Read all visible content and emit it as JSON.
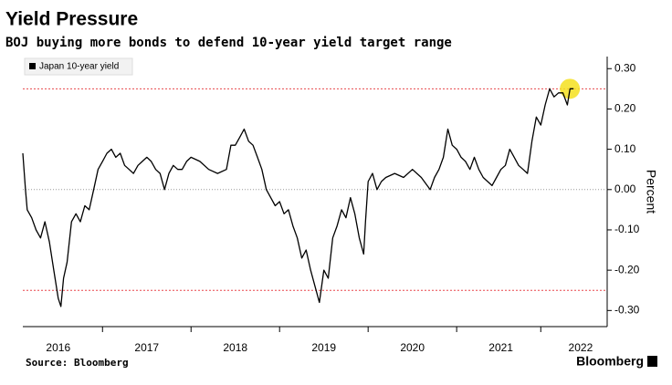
{
  "chart_data": {
    "type": "line",
    "title": "Yield Pressure",
    "subtitle": "BOJ buying more bonds to defend 10-year yield target range",
    "y_axis_label": "Percent",
    "source": "Source: Bloomberg",
    "brand": "Bloomberg",
    "xlim": [
      2016.1,
      2022.7
    ],
    "xticks": [
      {
        "value": 2016.5,
        "label": "2016"
      },
      {
        "value": 2017.5,
        "label": "2017"
      },
      {
        "value": 2018.5,
        "label": "2018"
      },
      {
        "value": 2019.5,
        "label": "2019"
      },
      {
        "value": 2020.5,
        "label": "2020"
      },
      {
        "value": 2021.5,
        "label": "2021"
      },
      {
        "value": 2022.4,
        "label": "2022"
      }
    ],
    "ylim": [
      -0.34,
      0.33
    ],
    "yticks": [
      {
        "value": 0.3,
        "label": "0.30"
      },
      {
        "value": 0.2,
        "label": "0.20"
      },
      {
        "value": 0.1,
        "label": "0.10"
      },
      {
        "value": 0,
        "label": "0.00"
      },
      {
        "value": -0.1,
        "label": "-0.10"
      },
      {
        "value": -0.2,
        "label": "-0.20"
      },
      {
        "value": -0.3,
        "label": "-0.30"
      }
    ],
    "reference_lines": [
      0.25,
      -0.25
    ],
    "reference_color": "#e8474b",
    "highlight_color": "#f5e01e",
    "legend_position": "upper left",
    "series": [
      {
        "name": "Japan 10-year yield",
        "color": "#000000",
        "x": [
          2016.1,
          2016.13,
          2016.15,
          2016.2,
          2016.25,
          2016.3,
          2016.35,
          2016.4,
          2016.45,
          2016.5,
          2016.53,
          2016.56,
          2016.6,
          2016.65,
          2016.7,
          2016.75,
          2016.8,
          2016.85,
          2016.9,
          2016.95,
          2017.0,
          2017.05,
          2017.1,
          2017.15,
          2017.2,
          2017.25,
          2017.3,
          2017.35,
          2017.4,
          2017.45,
          2017.5,
          2017.55,
          2017.6,
          2017.65,
          2017.7,
          2017.75,
          2017.8,
          2017.85,
          2017.9,
          2017.95,
          2018.0,
          2018.1,
          2018.2,
          2018.3,
          2018.4,
          2018.45,
          2018.5,
          2018.55,
          2018.6,
          2018.65,
          2018.7,
          2018.75,
          2018.8,
          2018.85,
          2018.9,
          2018.95,
          2019.0,
          2019.05,
          2019.1,
          2019.15,
          2019.2,
          2019.25,
          2019.3,
          2019.35,
          2019.4,
          2019.45,
          2019.5,
          2019.55,
          2019.6,
          2019.65,
          2019.7,
          2019.75,
          2019.8,
          2019.85,
          2019.9,
          2019.95,
          2019.97,
          2020.0,
          2020.05,
          2020.1,
          2020.15,
          2020.2,
          2020.3,
          2020.4,
          2020.5,
          2020.6,
          2020.7,
          2020.75,
          2020.8,
          2020.85,
          2020.9,
          2020.95,
          2021.0,
          2021.05,
          2021.1,
          2021.15,
          2021.2,
          2021.25,
          2021.3,
          2021.35,
          2021.4,
          2021.45,
          2021.5,
          2021.55,
          2021.6,
          2021.65,
          2021.7,
          2021.75,
          2021.8,
          2021.85,
          2021.9,
          2021.95,
          2022.0,
          2022.05,
          2022.1,
          2022.15,
          2022.2,
          2022.25,
          2022.28,
          2022.32
        ],
        "values": [
          0.09,
          0.0,
          -0.05,
          -0.07,
          -0.1,
          -0.12,
          -0.08,
          -0.13,
          -0.2,
          -0.27,
          -0.29,
          -0.22,
          -0.18,
          -0.08,
          -0.06,
          -0.08,
          -0.04,
          -0.05,
          0.0,
          0.05,
          0.07,
          0.09,
          0.1,
          0.08,
          0.09,
          0.06,
          0.05,
          0.04,
          0.06,
          0.07,
          0.08,
          0.07,
          0.05,
          0.04,
          0.0,
          0.04,
          0.06,
          0.05,
          0.05,
          0.07,
          0.08,
          0.07,
          0.05,
          0.04,
          0.05,
          0.11,
          0.11,
          0.13,
          0.15,
          0.12,
          0.11,
          0.08,
          0.05,
          0.0,
          -0.02,
          -0.04,
          -0.03,
          -0.06,
          -0.05,
          -0.09,
          -0.12,
          -0.17,
          -0.15,
          -0.2,
          -0.24,
          -0.28,
          -0.2,
          -0.22,
          -0.12,
          -0.09,
          -0.05,
          -0.07,
          -0.02,
          -0.06,
          -0.12,
          -0.16,
          -0.08,
          0.02,
          0.04,
          0.0,
          0.02,
          0.03,
          0.04,
          0.03,
          0.05,
          0.03,
          0.0,
          0.03,
          0.05,
          0.08,
          0.15,
          0.11,
          0.1,
          0.08,
          0.07,
          0.05,
          0.08,
          0.05,
          0.03,
          0.02,
          0.01,
          0.03,
          0.05,
          0.06,
          0.1,
          0.08,
          0.06,
          0.05,
          0.04,
          0.12,
          0.18,
          0.16,
          0.21,
          0.25,
          0.23,
          0.24,
          0.24,
          0.21,
          0.25,
          0.25
        ]
      }
    ]
  }
}
